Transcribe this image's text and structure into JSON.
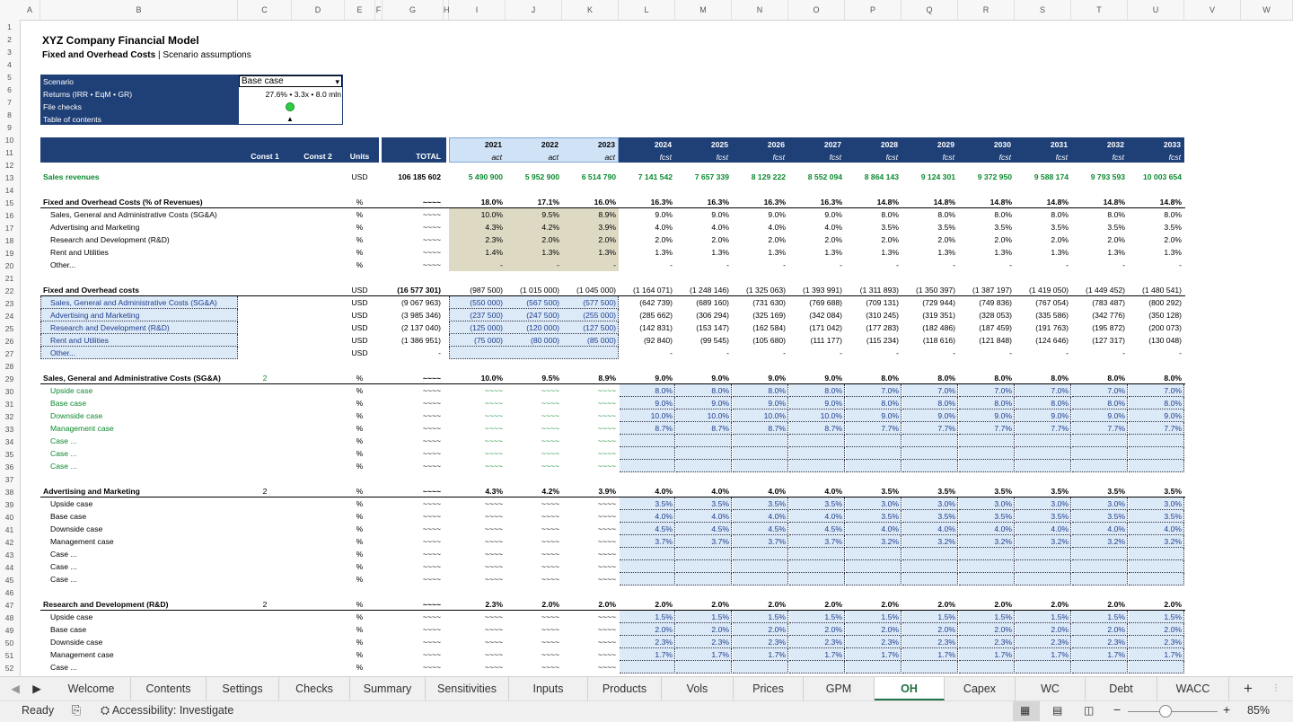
{
  "columns": [
    "A",
    "B",
    "C",
    "D",
    "E",
    "F",
    "G",
    "H",
    "I",
    "J",
    "K",
    "L",
    "M",
    "N",
    "O",
    "P",
    "Q",
    "R",
    "S",
    "T",
    "U",
    "V",
    "W"
  ],
  "rows": [
    "1",
    "2",
    "3",
    "4",
    "5",
    "6",
    "7",
    "8",
    "9",
    "10",
    "11",
    "12",
    "13",
    "14",
    "15",
    "16",
    "17",
    "18",
    "19",
    "20",
    "21",
    "22",
    "23",
    "24",
    "25",
    "26",
    "27",
    "28",
    "29",
    "30",
    "31",
    "32",
    "33",
    "34",
    "35",
    "36",
    "37",
    "38",
    "39",
    "40",
    "41",
    "42",
    "43",
    "44",
    "45",
    "46",
    "47",
    "48",
    "49",
    "50",
    "51",
    "52"
  ],
  "title": "XYZ Company Financial Model",
  "subtitle_bold": "Fixed and Overhead Costs",
  "subtitle_sep": "|",
  "subtitle_rest": "Scenario assumptions",
  "info": {
    "scenario_label": "Scenario",
    "scenario_value": "Base case",
    "returns_label": "Returns (IRR • EqM • GR)",
    "returns_value": "27.6% • 3.3x • 8.0 mln",
    "checks_label": "File checks",
    "toc_label": "Table of contents",
    "toc_arrow": "▲",
    "check_color": "#2ecc40"
  },
  "header": {
    "const1": "Const 1",
    "const2": "Const 2",
    "units": "Units",
    "total": "TOTAL",
    "years": [
      "2021",
      "2022",
      "2023",
      "2024",
      "2025",
      "2026",
      "2027",
      "2028",
      "2029",
      "2030",
      "2031",
      "2032",
      "2033"
    ],
    "flags": [
      "act",
      "act",
      "act",
      "fcst",
      "fcst",
      "fcst",
      "fcst",
      "fcst",
      "fcst",
      "fcst",
      "fcst",
      "fcst",
      "fcst"
    ]
  },
  "sheet_rows": [
    {
      "n": 13,
      "label": "Sales revenues",
      "bold": true,
      "units": "USD",
      "total": "106 185 602",
      "vals": [
        "5 490 900",
        "5 952 900",
        "6 514 790",
        "7 141 542",
        "7 657 339",
        "8 129 222",
        "8 552 094",
        "8 864 143",
        "9 124 301",
        "9 372 950",
        "9 588 174",
        "9 793 593",
        "10 003 654"
      ],
      "color": "g",
      "valbold": true
    },
    {
      "n": 15,
      "label": "Fixed and Overhead Costs (% of Revenues)",
      "bold": true,
      "ul": true,
      "units": "%",
      "total": "~~~~",
      "vals": [
        "18.0%",
        "17.1%",
        "16.0%",
        "16.3%",
        "16.3%",
        "16.3%",
        "16.3%",
        "14.8%",
        "14.8%",
        "14.8%",
        "14.8%",
        "14.8%",
        "14.8%"
      ],
      "valbold": true
    },
    {
      "n": 16,
      "label": "Sales, General and Administrative Costs (SG&A)",
      "indent": true,
      "units": "%",
      "total": "~~~~",
      "vals": [
        "10.0%",
        "9.5%",
        "8.9%",
        "9.0%",
        "9.0%",
        "9.0%",
        "9.0%",
        "8.0%",
        "8.0%",
        "8.0%",
        "8.0%",
        "8.0%",
        "8.0%"
      ],
      "act": "tan"
    },
    {
      "n": 17,
      "label": "Advertising and Marketing",
      "indent": true,
      "units": "%",
      "total": "~~~~",
      "vals": [
        "4.3%",
        "4.2%",
        "3.9%",
        "4.0%",
        "4.0%",
        "4.0%",
        "4.0%",
        "3.5%",
        "3.5%",
        "3.5%",
        "3.5%",
        "3.5%",
        "3.5%"
      ],
      "act": "tan"
    },
    {
      "n": 18,
      "label": "Research and Development (R&D)",
      "indent": true,
      "units": "%",
      "total": "~~~~",
      "vals": [
        "2.3%",
        "2.0%",
        "2.0%",
        "2.0%",
        "2.0%",
        "2.0%",
        "2.0%",
        "2.0%",
        "2.0%",
        "2.0%",
        "2.0%",
        "2.0%",
        "2.0%"
      ],
      "act": "tan"
    },
    {
      "n": 19,
      "label": "Rent and Utilities",
      "indent": true,
      "units": "%",
      "total": "~~~~",
      "vals": [
        "1.4%",
        "1.3%",
        "1.3%",
        "1.3%",
        "1.3%",
        "1.3%",
        "1.3%",
        "1.3%",
        "1.3%",
        "1.3%",
        "1.3%",
        "1.3%",
        "1.3%"
      ],
      "act": "tan"
    },
    {
      "n": 20,
      "label": "Other...",
      "indent": true,
      "units": "%",
      "total": "~~~~",
      "vals": [
        "-",
        "-",
        "-",
        "-",
        "-",
        "-",
        "-",
        "-",
        "-",
        "-",
        "-",
        "-",
        "-"
      ],
      "act": "tan"
    },
    {
      "n": 22,
      "label": "Fixed and Overhead costs",
      "bold": true,
      "ul": true,
      "units": "USD",
      "total": "(16 577 301)",
      "vals": [
        "(987 500)",
        "(1 015 000)",
        "(1 045 000)",
        "(1 164 071)",
        "(1 248 146)",
        "(1 325 063)",
        "(1 393 991)",
        "(1 311 893)",
        "(1 350 397)",
        "(1 387 197)",
        "(1 419 050)",
        "(1 449 452)",
        "(1 480 541)"
      ]
    },
    {
      "n": 23,
      "label": "Sales, General and Administrative Costs (SG&A)",
      "indent": true,
      "units": "USD",
      "total": "(9 067 963)",
      "vals": [
        "(550 000)",
        "(567 500)",
        "(577 500)",
        "(642 739)",
        "(689 160)",
        "(731 630)",
        "(769 688)",
        "(709 131)",
        "(729 944)",
        "(749 836)",
        "(767 054)",
        "(783 487)",
        "(800 292)"
      ],
      "act": "blue",
      "lblbox": true
    },
    {
      "n": 24,
      "label": "Advertising and Marketing",
      "indent": true,
      "units": "USD",
      "total": "(3 985 346)",
      "vals": [
        "(237 500)",
        "(247 500)",
        "(255 000)",
        "(285 662)",
        "(306 294)",
        "(325 169)",
        "(342 084)",
        "(310 245)",
        "(319 351)",
        "(328 053)",
        "(335 586)",
        "(342 776)",
        "(350 128)"
      ],
      "act": "blue",
      "lblbox": true
    },
    {
      "n": 25,
      "label": "Research and Development (R&D)",
      "indent": true,
      "units": "USD",
      "total": "(2 137 040)",
      "vals": [
        "(125 000)",
        "(120 000)",
        "(127 500)",
        "(142 831)",
        "(153 147)",
        "(162 584)",
        "(171 042)",
        "(177 283)",
        "(182 486)",
        "(187 459)",
        "(191 763)",
        "(195 872)",
        "(200 073)"
      ],
      "act": "blue",
      "lblbox": true
    },
    {
      "n": 26,
      "label": "Rent and Utilities",
      "indent": true,
      "units": "USD",
      "total": "(1 386 951)",
      "vals": [
        "(75 000)",
        "(80 000)",
        "(85 000)",
        "(92 840)",
        "(99 545)",
        "(105 680)",
        "(111 177)",
        "(115 234)",
        "(118 616)",
        "(121 848)",
        "(124 646)",
        "(127 317)",
        "(130 048)"
      ],
      "act": "blue",
      "lblbox": true
    },
    {
      "n": 27,
      "label": "Other...",
      "indent": true,
      "units": "USD",
      "total": "-",
      "vals": [
        "",
        "",
        "",
        "-",
        "-",
        "-",
        "-",
        "-",
        "-",
        "-",
        "-",
        "-",
        "-"
      ],
      "act": "blue",
      "lblbox": true
    },
    {
      "n": 29,
      "label": "Sales, General and Administrative Costs (SG&A)",
      "bold": true,
      "ul": true,
      "const1": "2",
      "const1color": "g",
      "units": "%",
      "total": "~~~~",
      "vals": [
        "10.0%",
        "9.5%",
        "8.9%",
        "9.0%",
        "9.0%",
        "9.0%",
        "9.0%",
        "8.0%",
        "8.0%",
        "8.0%",
        "8.0%",
        "8.0%",
        "8.0%"
      ],
      "valbold": true
    },
    {
      "n": 30,
      "label": "Upside case",
      "indent": true,
      "color": "g",
      "units": "%",
      "total": "~~~~",
      "vals": [
        "~~~~",
        "~~~~",
        "~~~~",
        "8.0%",
        "8.0%",
        "8.0%",
        "8.0%",
        "7.0%",
        "7.0%",
        "7.0%",
        "7.0%",
        "7.0%",
        "7.0%"
      ],
      "fc": "blue"
    },
    {
      "n": 31,
      "label": "Base case",
      "indent": true,
      "color": "g",
      "units": "%",
      "total": "~~~~",
      "vals": [
        "~~~~",
        "~~~~",
        "~~~~",
        "9.0%",
        "9.0%",
        "9.0%",
        "9.0%",
        "8.0%",
        "8.0%",
        "8.0%",
        "8.0%",
        "8.0%",
        "8.0%"
      ],
      "fc": "blue"
    },
    {
      "n": 32,
      "label": "Downside case",
      "indent": true,
      "color": "g",
      "units": "%",
      "total": "~~~~",
      "vals": [
        "~~~~",
        "~~~~",
        "~~~~",
        "10.0%",
        "10.0%",
        "10.0%",
        "10.0%",
        "9.0%",
        "9.0%",
        "9.0%",
        "9.0%",
        "9.0%",
        "9.0%"
      ],
      "fc": "blue"
    },
    {
      "n": 33,
      "label": "Management case",
      "indent": true,
      "color": "g",
      "units": "%",
      "total": "~~~~",
      "vals": [
        "~~~~",
        "~~~~",
        "~~~~",
        "8.7%",
        "8.7%",
        "8.7%",
        "8.7%",
        "7.7%",
        "7.7%",
        "7.7%",
        "7.7%",
        "7.7%",
        "7.7%"
      ],
      "fc": "blue"
    },
    {
      "n": 34,
      "label": "Case ...",
      "indent": true,
      "color": "g",
      "units": "%",
      "total": "~~~~",
      "vals": [
        "~~~~",
        "~~~~",
        "~~~~",
        "",
        "",
        "",
        "",
        "",
        "",
        "",
        "",
        "",
        ""
      ],
      "fc": "blue"
    },
    {
      "n": 35,
      "label": "Case ...",
      "indent": true,
      "color": "g",
      "units": "%",
      "total": "~~~~",
      "vals": [
        "~~~~",
        "~~~~",
        "~~~~",
        "",
        "",
        "",
        "",
        "",
        "",
        "",
        "",
        "",
        ""
      ],
      "fc": "blue"
    },
    {
      "n": 36,
      "label": "Case ...",
      "indent": true,
      "color": "g",
      "units": "%",
      "total": "~~~~",
      "vals": [
        "~~~~",
        "~~~~",
        "~~~~",
        "",
        "",
        "",
        "",
        "",
        "",
        "",
        "",
        "",
        ""
      ],
      "fc": "blue"
    },
    {
      "n": 38,
      "label": "Advertising and Marketing",
      "bold": true,
      "ul": true,
      "const1": "2",
      "units": "%",
      "total": "~~~~",
      "vals": [
        "4.3%",
        "4.2%",
        "3.9%",
        "4.0%",
        "4.0%",
        "4.0%",
        "4.0%",
        "3.5%",
        "3.5%",
        "3.5%",
        "3.5%",
        "3.5%",
        "3.5%"
      ],
      "valbold": true
    },
    {
      "n": 39,
      "label": "Upside case",
      "indent": true,
      "units": "%",
      "total": "~~~~",
      "vals": [
        "~~~~",
        "~~~~",
        "~~~~",
        "3.5%",
        "3.5%",
        "3.5%",
        "3.5%",
        "3.0%",
        "3.0%",
        "3.0%",
        "3.0%",
        "3.0%",
        "3.0%"
      ],
      "fc": "blue"
    },
    {
      "n": 40,
      "label": "Base case",
      "indent": true,
      "units": "%",
      "total": "~~~~",
      "vals": [
        "~~~~",
        "~~~~",
        "~~~~",
        "4.0%",
        "4.0%",
        "4.0%",
        "4.0%",
        "3.5%",
        "3.5%",
        "3.5%",
        "3.5%",
        "3.5%",
        "3.5%"
      ],
      "fc": "blue"
    },
    {
      "n": 41,
      "label": "Downside case",
      "indent": true,
      "units": "%",
      "total": "~~~~",
      "vals": [
        "~~~~",
        "~~~~",
        "~~~~",
        "4.5%",
        "4.5%",
        "4.5%",
        "4.5%",
        "4.0%",
        "4.0%",
        "4.0%",
        "4.0%",
        "4.0%",
        "4.0%"
      ],
      "fc": "blue"
    },
    {
      "n": 42,
      "label": "Management case",
      "indent": true,
      "units": "%",
      "total": "~~~~",
      "vals": [
        "~~~~",
        "~~~~",
        "~~~~",
        "3.7%",
        "3.7%",
        "3.7%",
        "3.7%",
        "3.2%",
        "3.2%",
        "3.2%",
        "3.2%",
        "3.2%",
        "3.2%"
      ],
      "fc": "blue"
    },
    {
      "n": 43,
      "label": "Case ...",
      "indent": true,
      "units": "%",
      "total": "~~~~",
      "vals": [
        "~~~~",
        "~~~~",
        "~~~~",
        "",
        "",
        "",
        "",
        "",
        "",
        "",
        "",
        "",
        ""
      ],
      "fc": "blue"
    },
    {
      "n": 44,
      "label": "Case ...",
      "indent": true,
      "units": "%",
      "total": "~~~~",
      "vals": [
        "~~~~",
        "~~~~",
        "~~~~",
        "",
        "",
        "",
        "",
        "",
        "",
        "",
        "",
        "",
        ""
      ],
      "fc": "blue"
    },
    {
      "n": 45,
      "label": "Case ...",
      "indent": true,
      "units": "%",
      "total": "~~~~",
      "vals": [
        "~~~~",
        "~~~~",
        "~~~~",
        "",
        "",
        "",
        "",
        "",
        "",
        "",
        "",
        "",
        ""
      ],
      "fc": "blue"
    },
    {
      "n": 47,
      "label": "Research and Development (R&D)",
      "bold": true,
      "ul": true,
      "const1": "2",
      "units": "%",
      "total": "~~~~",
      "vals": [
        "2.3%",
        "2.0%",
        "2.0%",
        "2.0%",
        "2.0%",
        "2.0%",
        "2.0%",
        "2.0%",
        "2.0%",
        "2.0%",
        "2.0%",
        "2.0%",
        "2.0%"
      ],
      "valbold": true
    },
    {
      "n": 48,
      "label": "Upside case",
      "indent": true,
      "units": "%",
      "total": "~~~~",
      "vals": [
        "~~~~",
        "~~~~",
        "~~~~",
        "1.5%",
        "1.5%",
        "1.5%",
        "1.5%",
        "1.5%",
        "1.5%",
        "1.5%",
        "1.5%",
        "1.5%",
        "1.5%"
      ],
      "fc": "blue"
    },
    {
      "n": 49,
      "label": "Base case",
      "indent": true,
      "units": "%",
      "total": "~~~~",
      "vals": [
        "~~~~",
        "~~~~",
        "~~~~",
        "2.0%",
        "2.0%",
        "2.0%",
        "2.0%",
        "2.0%",
        "2.0%",
        "2.0%",
        "2.0%",
        "2.0%",
        "2.0%"
      ],
      "fc": "blue"
    },
    {
      "n": 50,
      "label": "Downside case",
      "indent": true,
      "units": "%",
      "total": "~~~~",
      "vals": [
        "~~~~",
        "~~~~",
        "~~~~",
        "2.3%",
        "2.3%",
        "2.3%",
        "2.3%",
        "2.3%",
        "2.3%",
        "2.3%",
        "2.3%",
        "2.3%",
        "2.3%"
      ],
      "fc": "blue"
    },
    {
      "n": 51,
      "label": "Management case",
      "indent": true,
      "units": "%",
      "total": "~~~~",
      "vals": [
        "~~~~",
        "~~~~",
        "~~~~",
        "1.7%",
        "1.7%",
        "1.7%",
        "1.7%",
        "1.7%",
        "1.7%",
        "1.7%",
        "1.7%",
        "1.7%",
        "1.7%"
      ],
      "fc": "blue"
    },
    {
      "n": 52,
      "label": "Case ...",
      "indent": true,
      "units": "%",
      "total": "~~~~",
      "vals": [
        "~~~~",
        "~~~~",
        "~~~~",
        "",
        "",
        "",
        "",
        "",
        "",
        "",
        "",
        "",
        ""
      ],
      "fc": "blue"
    }
  ],
  "tabs": [
    "Welcome",
    "Contents",
    "Settings",
    "Checks",
    "Summary",
    "Sensitivities",
    "Inputs",
    "Products",
    "Vols",
    "Prices",
    "GPM",
    "OH",
    "Capex",
    "WC",
    "Debt",
    "WACC"
  ],
  "active_tab": "OH",
  "add_sheet": "+",
  "status": {
    "ready": "Ready",
    "accessibility": "Accessibility: Investigate",
    "zoom": "85%"
  },
  "colors": {
    "navy": "#1f3f77",
    "header_blue": "#cfe2f6",
    "input_blue": "#dce9f7",
    "tan": "#ddd9c3",
    "green": "#0a8a2e",
    "accent": "#1e7145"
  }
}
